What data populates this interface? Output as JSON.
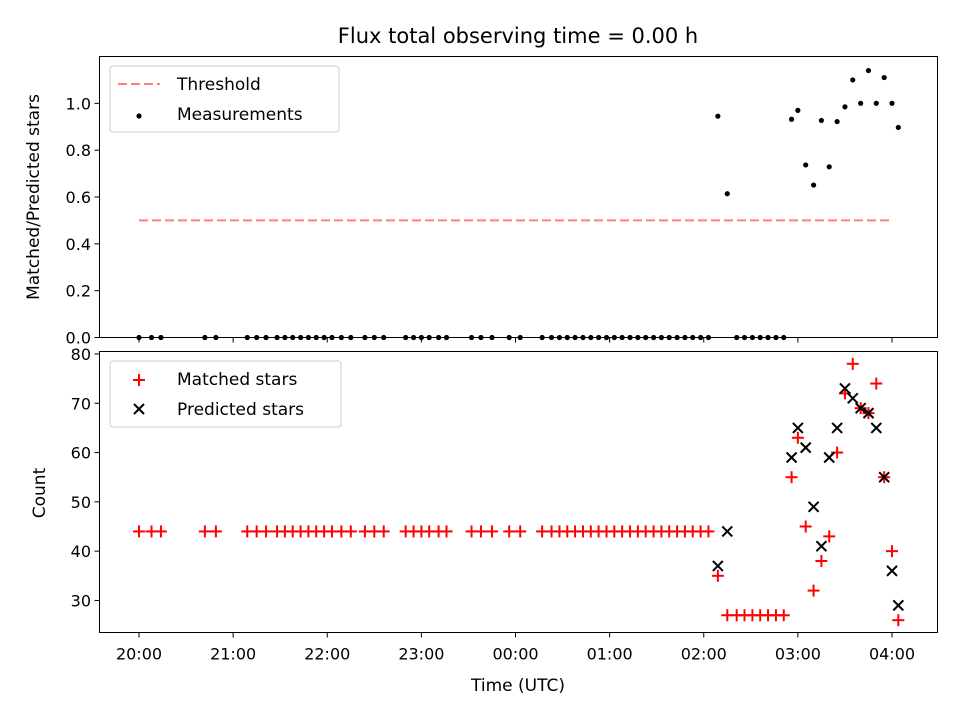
{
  "chart_data": {
    "type": "scatter",
    "title": "Flux total observing time = 0.00 h",
    "x_ticks": [
      "20:00",
      "21:00",
      "22:00",
      "23:00",
      "00:00",
      "01:00",
      "02:00",
      "03:00",
      "04:00"
    ],
    "xlabel": "Time (UTC)",
    "panels": [
      {
        "id": "ratio",
        "ylabel": "Matched/Predicted stars",
        "ylim": [
          0,
          1.2
        ],
        "y_ticks": [
          0.0,
          0.2,
          0.4,
          0.6,
          0.8,
          1.0
        ],
        "y_tick_labels": [
          "0.0",
          "0.2",
          "0.4",
          "0.6",
          "0.8",
          "1.0"
        ],
        "legend": {
          "position": "upper-left",
          "entries": [
            {
              "label": "Threshold",
              "marker": "dashed-line",
              "color": "#ff7f7f"
            },
            {
              "label": "Measurements",
              "marker": "dot",
              "color": "#000000"
            }
          ]
        },
        "threshold": {
          "value": 0.5,
          "x_start": 0.0,
          "x_end": 8.0,
          "color": "#ff7f7f"
        },
        "series": [
          {
            "name": "Measurements",
            "color": "#000000",
            "x": [
              0.0,
              0.133,
              0.233,
              0.7,
              0.817,
              1.15,
              1.25,
              1.35,
              1.467,
              1.55,
              1.633,
              1.717,
              1.8,
              1.883,
              1.967,
              2.05,
              2.15,
              2.25,
              2.4,
              2.5,
              2.6,
              2.833,
              2.917,
              3.0,
              3.083,
              3.183,
              3.267,
              3.533,
              3.633,
              3.75,
              3.933,
              4.05,
              4.283,
              4.383,
              4.467,
              4.55,
              4.633,
              4.717,
              4.8,
              4.883,
              4.967,
              5.05,
              5.133,
              5.217,
              5.3,
              5.383,
              5.467,
              5.55,
              5.633,
              5.717,
              5.8,
              5.883,
              5.967,
              6.05,
              6.15,
              6.25,
              6.35,
              6.433,
              6.517,
              6.6,
              6.683,
              6.767,
              6.85,
              6.933,
              7.0,
              7.083,
              7.167,
              7.25,
              7.333,
              7.417,
              7.5,
              7.583,
              7.667,
              7.75,
              7.833,
              7.917,
              8.0,
              8.067
            ],
            "y": [
              0,
              0,
              0,
              0,
              0,
              0,
              0,
              0,
              0,
              0,
              0,
              0,
              0,
              0,
              0,
              0,
              0,
              0,
              0,
              0,
              0,
              0,
              0,
              0,
              0,
              0,
              0,
              0,
              0,
              0,
              0,
              0,
              0,
              0,
              0,
              0,
              0,
              0,
              0,
              0,
              0,
              0,
              0,
              0,
              0,
              0,
              0,
              0,
              0,
              0,
              0,
              0,
              0,
              0,
              0.945,
              0.614,
              0,
              0,
              0,
              0,
              0,
              0,
              0,
              0.932,
              0.97,
              0.737,
              0.651,
              0.927,
              0.729,
              0.922,
              0.985,
              1.1,
              1.0,
              1.14,
              1.0,
              1.11,
              1.0,
              0.897
            ]
          }
        ]
      },
      {
        "id": "count",
        "ylabel": "Count",
        "ylim": [
          23.5,
          80.5
        ],
        "y_ticks": [
          30,
          40,
          50,
          60,
          70,
          80
        ],
        "y_tick_labels": [
          "30",
          "40",
          "50",
          "60",
          "70",
          "80"
        ],
        "legend": {
          "position": "upper-left",
          "entries": [
            {
              "label": "Matched stars",
              "marker": "plus",
              "color": "#ff0000"
            },
            {
              "label": "Predicted stars",
              "marker": "x",
              "color": "#000000"
            }
          ]
        },
        "series": [
          {
            "name": "Matched stars",
            "marker": "plus",
            "color": "#ff0000",
            "x": [
              0.0,
              0.133,
              0.233,
              0.7,
              0.817,
              1.15,
              1.25,
              1.35,
              1.467,
              1.55,
              1.633,
              1.717,
              1.8,
              1.883,
              1.967,
              2.05,
              2.15,
              2.25,
              2.4,
              2.5,
              2.6,
              2.833,
              2.917,
              3.0,
              3.083,
              3.183,
              3.267,
              3.533,
              3.633,
              3.75,
              3.933,
              4.05,
              4.283,
              4.383,
              4.467,
              4.55,
              4.633,
              4.717,
              4.8,
              4.883,
              4.967,
              5.05,
              5.133,
              5.217,
              5.3,
              5.383,
              5.467,
              5.55,
              5.633,
              5.717,
              5.8,
              5.883,
              5.967,
              6.05,
              6.15,
              6.25,
              6.35,
              6.433,
              6.517,
              6.6,
              6.683,
              6.767,
              6.85,
              6.933,
              7.0,
              7.083,
              7.167,
              7.25,
              7.333,
              7.417,
              7.5,
              7.583,
              7.667,
              7.75,
              7.833,
              7.917,
              8.0,
              8.067
            ],
            "y": [
              44,
              44,
              44,
              44,
              44,
              44,
              44,
              44,
              44,
              44,
              44,
              44,
              44,
              44,
              44,
              44,
              44,
              44,
              44,
              44,
              44,
              44,
              44,
              44,
              44,
              44,
              44,
              44,
              44,
              44,
              44,
              44,
              44,
              44,
              44,
              44,
              44,
              44,
              44,
              44,
              44,
              44,
              44,
              44,
              44,
              44,
              44,
              44,
              44,
              44,
              44,
              44,
              44,
              44,
              35,
              27,
              27,
              27,
              27,
              27,
              27,
              27,
              27,
              55,
              63,
              45,
              32,
              38,
              43,
              60,
              72,
              78,
              69,
              68,
              74,
              55,
              40,
              26
            ]
          },
          {
            "name": "Predicted stars",
            "marker": "x",
            "color": "#000000",
            "x": [
              6.15,
              6.25,
              6.933,
              7.0,
              7.083,
              7.167,
              7.25,
              7.333,
              7.417,
              7.5,
              7.583,
              7.667,
              7.75,
              7.833,
              7.917,
              8.0,
              8.067
            ],
            "y": [
              37,
              44,
              59,
              65,
              61,
              49,
              41,
              59,
              65,
              73,
              71,
              69,
              68,
              65,
              55,
              36,
              29
            ]
          }
        ]
      }
    ]
  }
}
